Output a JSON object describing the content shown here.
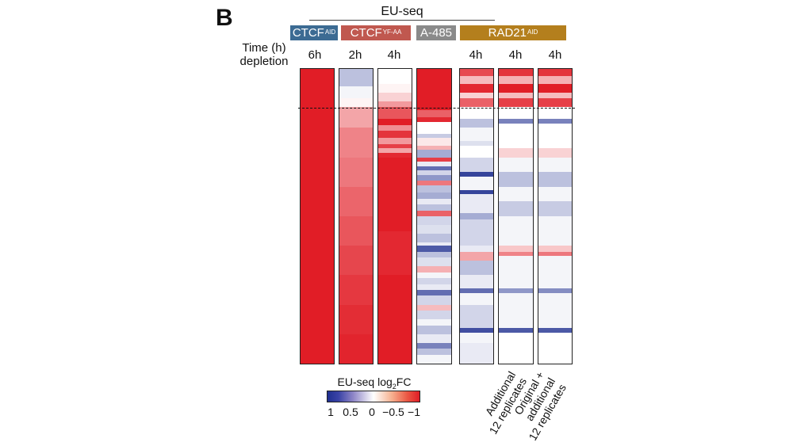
{
  "panel_letter": "B",
  "assay_label": "EU-seq",
  "row_label": [
    "Time (h)",
    "depletion"
  ],
  "cutoff_label": "",
  "conditions": [
    {
      "main": "CTCF",
      "sup": "AID",
      "color": "#3c6b93"
    },
    {
      "main": "CTCF",
      "sup": "YF-AA",
      "color": "#c0584f"
    },
    {
      "main": "A-485",
      "sup": "",
      "color": "#8a8a8a"
    },
    {
      "main": "RAD21",
      "sup": "AID",
      "color": "#b47f1d"
    }
  ],
  "chart_data": {
    "type": "heatmap",
    "title": "",
    "value_label": "EU-seq log2FC",
    "colorbar": {
      "title_main": "EU-seq log",
      "title_sub": "2",
      "title_end": "FC",
      "ticks": [
        "1",
        "0.5",
        "0",
        "−0.5",
        "−1"
      ],
      "range": [
        1,
        -1
      ],
      "low_color": "#1f2f90",
      "mid_color": "#ffffff",
      "high_color": "#e11d26"
    },
    "columns": [
      {
        "condition": "CTCF AID",
        "time": "6h",
        "bands": []
      },
      {
        "condition": "CTCF YF-AA",
        "time": "2h",
        "bands": [
          {
            "y": 0.0,
            "v": 0.3
          },
          {
            "y": 0.06,
            "v": 0.05
          },
          {
            "y": 0.1,
            "v": -0.05
          },
          {
            "y": 0.13,
            "v": -0.4
          },
          {
            "y": 0.2,
            "v": -0.55
          },
          {
            "y": 0.3,
            "v": -0.6
          },
          {
            "y": 0.4,
            "v": -0.68
          },
          {
            "y": 0.5,
            "v": -0.75
          },
          {
            "y": 0.6,
            "v": -0.82
          },
          {
            "y": 0.7,
            "v": -0.88
          },
          {
            "y": 0.8,
            "v": -0.93
          },
          {
            "y": 0.9,
            "v": -0.97
          }
        ]
      },
      {
        "condition": "CTCF YF-AA",
        "time": "4h",
        "bands": [
          {
            "y": 0.0,
            "v": 0.0
          },
          {
            "y": 0.05,
            "v": -0.05
          },
          {
            "y": 0.08,
            "v": -0.2
          },
          {
            "y": 0.11,
            "v": -0.45
          },
          {
            "y": 0.13,
            "v": -0.75
          },
          {
            "y": 0.17,
            "v": -1.0
          },
          {
            "y": 0.19,
            "v": -0.5
          },
          {
            "y": 0.21,
            "v": -0.9
          },
          {
            "y": 0.235,
            "v": -0.45
          },
          {
            "y": 0.255,
            "v": -0.85
          },
          {
            "y": 0.27,
            "v": -0.4
          },
          {
            "y": 0.285,
            "v": -0.95
          },
          {
            "y": 0.3,
            "v": -1.0
          },
          {
            "y": 0.4,
            "v": -1.0
          },
          {
            "y": 0.55,
            "v": -0.95
          },
          {
            "y": 0.7,
            "v": -1.0
          }
        ]
      },
      {
        "condition": "A-485",
        "time": "",
        "bands": [
          {
            "y": 0.0,
            "v": -1.0
          },
          {
            "y": 0.14,
            "v": -0.7
          },
          {
            "y": 0.165,
            "v": -0.95
          },
          {
            "y": 0.18,
            "v": 0.0
          },
          {
            "y": 0.22,
            "v": 0.25
          },
          {
            "y": 0.235,
            "v": -0.1
          },
          {
            "y": 0.26,
            "v": -0.35
          },
          {
            "y": 0.275,
            "v": 0.4
          },
          {
            "y": 0.3,
            "v": -0.85
          },
          {
            "y": 0.315,
            "v": 0.1
          },
          {
            "y": 0.33,
            "v": 0.7
          },
          {
            "y": 0.345,
            "v": 0.2
          },
          {
            "y": 0.36,
            "v": 0.5
          },
          {
            "y": 0.38,
            "v": -0.6
          },
          {
            "y": 0.395,
            "v": 0.3
          },
          {
            "y": 0.42,
            "v": 0.4
          },
          {
            "y": 0.44,
            "v": 0.1
          },
          {
            "y": 0.46,
            "v": 0.3
          },
          {
            "y": 0.48,
            "v": -0.7
          },
          {
            "y": 0.5,
            "v": 0.2
          },
          {
            "y": 0.53,
            "v": 0.15
          },
          {
            "y": 0.56,
            "v": 0.3
          },
          {
            "y": 0.59,
            "v": 0.1
          },
          {
            "y": 0.6,
            "v": 0.8
          },
          {
            "y": 0.62,
            "v": 0.3
          },
          {
            "y": 0.64,
            "v": 0.15
          },
          {
            "y": 0.67,
            "v": -0.35
          },
          {
            "y": 0.69,
            "v": 0.05
          },
          {
            "y": 0.71,
            "v": 0.2
          },
          {
            "y": 0.73,
            "v": 0.1
          },
          {
            "y": 0.75,
            "v": 0.7
          },
          {
            "y": 0.77,
            "v": 0.2
          },
          {
            "y": 0.8,
            "v": -0.3
          },
          {
            "y": 0.82,
            "v": 0.2
          },
          {
            "y": 0.85,
            "v": 0.05
          },
          {
            "y": 0.87,
            "v": 0.3
          },
          {
            "y": 0.9,
            "v": 0.1
          },
          {
            "y": 0.93,
            "v": 0.6
          },
          {
            "y": 0.95,
            "v": 0.3
          },
          {
            "y": 0.97,
            "v": 0.05
          }
        ]
      },
      {
        "condition": "RAD21 AID",
        "time": "4h",
        "bands": [
          {
            "y": 0.0,
            "v": -0.8
          },
          {
            "y": 0.025,
            "v": -0.3
          },
          {
            "y": 0.05,
            "v": -0.95
          },
          {
            "y": 0.08,
            "v": -0.2
          },
          {
            "y": 0.1,
            "v": -0.7
          },
          {
            "y": 0.13,
            "v": 0.0
          },
          {
            "y": 0.17,
            "v": 0.3
          },
          {
            "y": 0.2,
            "v": 0.05
          },
          {
            "y": 0.245,
            "v": 0.15
          },
          {
            "y": 0.26,
            "v": 0.0
          },
          {
            "y": 0.3,
            "v": 0.2
          },
          {
            "y": 0.35,
            "v": 0.9
          },
          {
            "y": 0.365,
            "v": 0.05
          },
          {
            "y": 0.41,
            "v": 0.9
          },
          {
            "y": 0.425,
            "v": 0.1
          },
          {
            "y": 0.49,
            "v": 0.4
          },
          {
            "y": 0.51,
            "v": 0.2
          },
          {
            "y": 0.6,
            "v": 0.1
          },
          {
            "y": 0.62,
            "v": -0.4
          },
          {
            "y": 0.65,
            "v": 0.3
          },
          {
            "y": 0.7,
            "v": 0.1
          },
          {
            "y": 0.745,
            "v": 0.7
          },
          {
            "y": 0.76,
            "v": 0.05
          },
          {
            "y": 0.8,
            "v": 0.2
          },
          {
            "y": 0.88,
            "v": 0.85
          },
          {
            "y": 0.895,
            "v": 0.05
          },
          {
            "y": 0.93,
            "v": 0.1
          }
        ]
      },
      {
        "condition": "RAD21 AID",
        "time": "4h",
        "bands": [
          {
            "y": 0.0,
            "v": -0.9
          },
          {
            "y": 0.025,
            "v": -0.35
          },
          {
            "y": 0.05,
            "v": -1.0
          },
          {
            "y": 0.08,
            "v": -0.3
          },
          {
            "y": 0.1,
            "v": -0.85
          },
          {
            "y": 0.13,
            "v": 0.0
          },
          {
            "y": 0.17,
            "v": 0.6
          },
          {
            "y": 0.185,
            "v": 0.0
          },
          {
            "y": 0.27,
            "v": -0.2
          },
          {
            "y": 0.3,
            "v": 0.05
          },
          {
            "y": 0.35,
            "v": 0.3
          },
          {
            "y": 0.4,
            "v": 0.05
          },
          {
            "y": 0.45,
            "v": 0.25
          },
          {
            "y": 0.5,
            "v": 0.05
          },
          {
            "y": 0.6,
            "v": -0.25
          },
          {
            "y": 0.62,
            "v": -0.55
          },
          {
            "y": 0.635,
            "v": 0.05
          },
          {
            "y": 0.745,
            "v": 0.5
          },
          {
            "y": 0.76,
            "v": 0.05
          },
          {
            "y": 0.88,
            "v": 0.8
          },
          {
            "y": 0.895,
            "v": 0.0
          }
        ]
      },
      {
        "condition": "RAD21 AID",
        "time": "4h",
        "bands": [
          {
            "y": 0.0,
            "v": -0.9
          },
          {
            "y": 0.025,
            "v": -0.35
          },
          {
            "y": 0.05,
            "v": -1.0
          },
          {
            "y": 0.08,
            "v": -0.3
          },
          {
            "y": 0.1,
            "v": -0.85
          },
          {
            "y": 0.13,
            "v": 0.0
          },
          {
            "y": 0.17,
            "v": 0.6
          },
          {
            "y": 0.185,
            "v": 0.0
          },
          {
            "y": 0.27,
            "v": -0.2
          },
          {
            "y": 0.3,
            "v": 0.05
          },
          {
            "y": 0.35,
            "v": 0.3
          },
          {
            "y": 0.4,
            "v": 0.05
          },
          {
            "y": 0.45,
            "v": 0.25
          },
          {
            "y": 0.5,
            "v": 0.05
          },
          {
            "y": 0.6,
            "v": -0.25
          },
          {
            "y": 0.62,
            "v": -0.6
          },
          {
            "y": 0.635,
            "v": 0.05
          },
          {
            "y": 0.745,
            "v": 0.55
          },
          {
            "y": 0.76,
            "v": 0.05
          },
          {
            "y": 0.88,
            "v": 0.8
          },
          {
            "y": 0.895,
            "v": 0.0
          }
        ]
      }
    ],
    "column_annotations": [
      {
        "column": 5,
        "lines": [
          "Additional",
          "12 replicates"
        ]
      },
      {
        "column": 6,
        "lines": [
          "Original +",
          "additional",
          "12 replicates"
        ]
      }
    ]
  }
}
